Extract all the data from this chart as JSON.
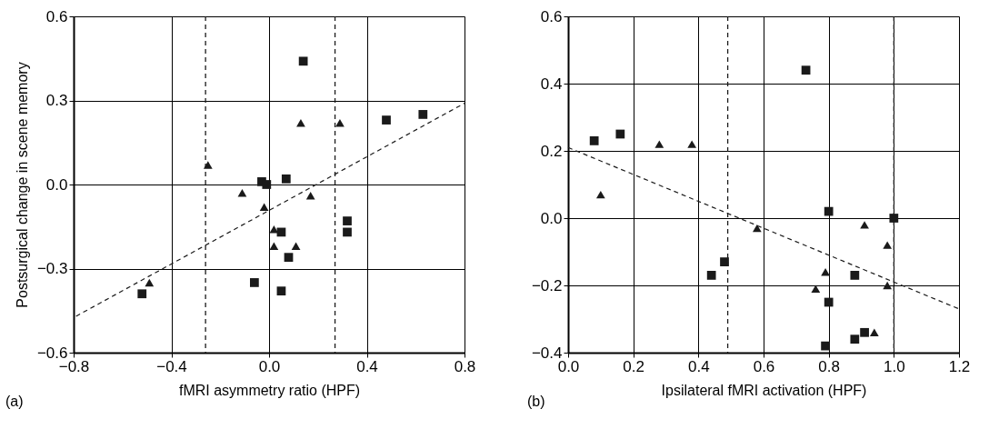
{
  "chart_data": [
    {
      "type": "scatter",
      "xlabel": "fMRI asymmetry ratio (HPF)",
      "ylabel": "Postsurgical change in scene memory",
      "annotations": [
        "(a)"
      ],
      "xlim": [
        -0.8,
        0.8
      ],
      "ylim": [
        -0.6,
        0.6
      ],
      "xticks": [
        {
          "value": -0.8,
          "label": "−0.8"
        },
        {
          "value": -0.4,
          "label": "−0.4"
        },
        {
          "value": 0,
          "label": "0.0"
        },
        {
          "value": 0.4,
          "label": "0.4"
        },
        {
          "value": 0.8,
          "label": "0.8"
        }
      ],
      "yticks": [
        {
          "value": -0.6,
          "label": "−0.6"
        },
        {
          "value": -0.3,
          "label": "−0.3"
        },
        {
          "value": 0,
          "label": "0.0"
        },
        {
          "value": 0.3,
          "label": "0.3"
        },
        {
          "value": 0.6,
          "label": "0.6"
        }
      ],
      "grid": true,
      "series": [
        {
          "marker": "square",
          "color": "#1a1a1a",
          "x": [
            0.14,
            0.48,
            0.63,
            -0.03,
            -0.01,
            0.07,
            0.32,
            0.32,
            0.05,
            0.08,
            -0.06,
            0.05,
            -0.52
          ],
          "values": [
            0.44,
            0.23,
            0.25,
            0.01,
            0.0,
            0.02,
            -0.13,
            -0.17,
            -0.17,
            -0.26,
            -0.35,
            -0.38,
            -0.39
          ]
        },
        {
          "marker": "triangle",
          "color": "#1a1a1a",
          "x": [
            0.13,
            0.29,
            -0.25,
            -0.11,
            0.17,
            -0.02,
            0.02,
            0.02,
            0.11,
            -0.49
          ],
          "values": [
            0.22,
            0.22,
            0.07,
            -0.03,
            -0.04,
            -0.08,
            -0.16,
            -0.22,
            -0.22,
            -0.35
          ]
        },
        {
          "type": "line",
          "line_style": "dashed",
          "color": "#1a1a1a",
          "x": [
            -0.79,
            0.8
          ],
          "values": [
            -0.47,
            0.29
          ]
        }
      ],
      "ref_lines": [
        {
          "axis": "x",
          "value": -0.26,
          "line_style": "dashed",
          "color": "#1a1a1a"
        },
        {
          "axis": "x",
          "value": 0.27,
          "line_style": "dashed",
          "color": "#1a1a1a"
        }
      ]
    },
    {
      "type": "scatter",
      "xlabel": "Ipsilateral fMRI activation (HPF)",
      "annotations": [
        "(b)"
      ],
      "xlim": [
        0,
        1.2
      ],
      "ylim": [
        -0.4,
        0.6
      ],
      "xticks": [
        {
          "value": 0,
          "label": "0.0"
        },
        0.2,
        0.4,
        0.6,
        0.8,
        {
          "value": 1,
          "label": "1.0"
        },
        {
          "value": 1.2,
          "label": "1.2"
        }
      ],
      "yticks": [
        {
          "value": -0.4,
          "label": "−0.4"
        },
        {
          "value": -0.2,
          "label": "−0.2"
        },
        {
          "value": 0,
          "label": "0.0"
        },
        0.2,
        0.4,
        0.6
      ],
      "grid": true,
      "series": [
        {
          "marker": "square",
          "color": "#1a1a1a",
          "x": [
            0.08,
            0.16,
            0.73,
            0.8,
            1.0,
            0.48,
            0.44,
            0.88,
            0.8,
            0.91,
            0.88,
            0.79
          ],
          "values": [
            0.23,
            0.25,
            0.44,
            0.02,
            0.0,
            -0.13,
            -0.17,
            -0.17,
            -0.25,
            -0.34,
            -0.36,
            -0.38
          ]
        },
        {
          "marker": "triangle",
          "color": "#1a1a1a",
          "x": [
            0.28,
            0.38,
            0.1,
            0.58,
            0.91,
            0.98,
            0.79,
            0.76,
            0.98,
            0.94
          ],
          "values": [
            0.22,
            0.22,
            0.07,
            -0.03,
            -0.02,
            -0.08,
            -0.16,
            -0.21,
            -0.2,
            -0.34
          ]
        },
        {
          "type": "line",
          "line_style": "dashed",
          "color": "#1a1a1a",
          "x": [
            0,
            1.2
          ],
          "values": [
            0.21,
            -0.27
          ]
        }
      ],
      "ref_lines": [
        {
          "axis": "x",
          "value": 0.49,
          "line_style": "dashed",
          "color": "#1a1a1a"
        },
        {
          "axis": "x",
          "value": 1.0,
          "line_style": "dashed",
          "color": "#1a1a1a"
        }
      ]
    }
  ]
}
